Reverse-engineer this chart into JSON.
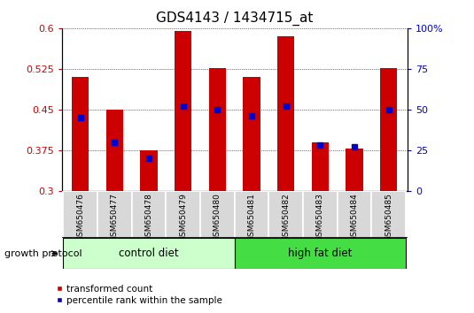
{
  "title": "GDS4143 / 1434715_at",
  "samples": [
    "GSM650476",
    "GSM650477",
    "GSM650478",
    "GSM650479",
    "GSM650480",
    "GSM650481",
    "GSM650482",
    "GSM650483",
    "GSM650484",
    "GSM650485"
  ],
  "red_values": [
    0.51,
    0.45,
    0.375,
    0.595,
    0.527,
    0.51,
    0.585,
    0.39,
    0.378,
    0.527
  ],
  "blue_pct": [
    45,
    30,
    20,
    52,
    50,
    46,
    52,
    28,
    27,
    50
  ],
  "groups": [
    {
      "label": "control diet",
      "color": "#ccffcc",
      "start": 0,
      "end": 5
    },
    {
      "label": "high fat diet",
      "color": "#44dd44",
      "start": 5,
      "end": 10
    }
  ],
  "group_label": "growth protocol",
  "ylim": [
    0.3,
    0.6
  ],
  "yticks": [
    0.3,
    0.375,
    0.45,
    0.525,
    0.6
  ],
  "ytick_labels": [
    "0.3",
    "0.375",
    "0.45",
    "0.525",
    "0.6"
  ],
  "y2ticks": [
    0,
    25,
    50,
    75,
    100
  ],
  "y2tick_labels": [
    "0",
    "25",
    "50",
    "75",
    "100%"
  ],
  "bar_color": "#cc0000",
  "blue_color": "#0000cc",
  "bar_width": 0.5,
  "baseline": 0.3,
  "legend_red": "transformed count",
  "legend_blue": "percentile rank within the sample",
  "title_fontsize": 11,
  "tick_fontsize": 8,
  "label_fontsize": 8
}
